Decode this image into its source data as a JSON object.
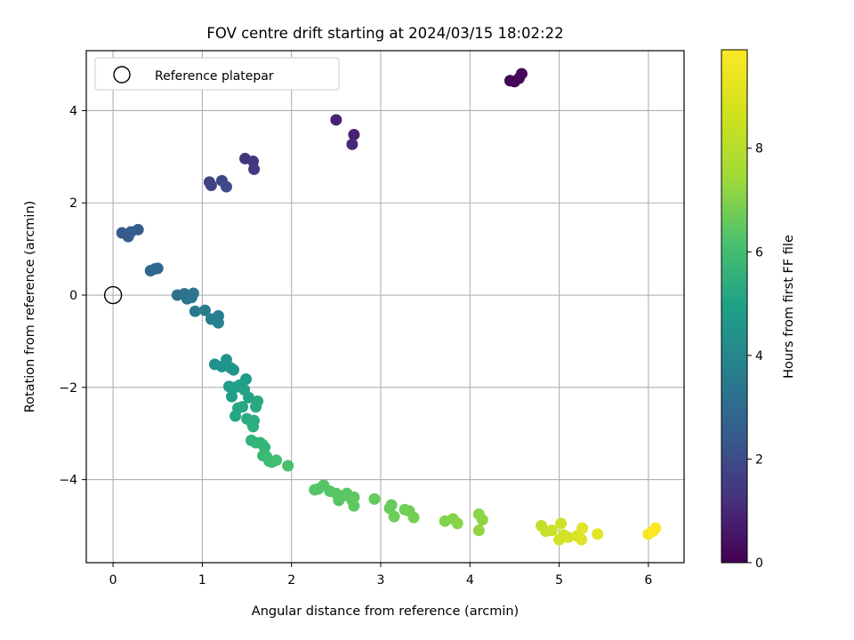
{
  "chart_data": {
    "type": "scatter",
    "title": "FOV centre drift starting at 2024/03/15 18:02:22",
    "xlabel": "Angular distance from reference (arcmin)",
    "ylabel": "Rotation from reference (arcmin)",
    "xlim": [
      -0.3,
      6.4
    ],
    "ylim": [
      -5.8,
      5.3
    ],
    "xticks": [
      0,
      1,
      2,
      3,
      4,
      5,
      6
    ],
    "xtick_labels": [
      "0",
      "1",
      "2",
      "3",
      "4",
      "5",
      "6"
    ],
    "yticks": [
      -4,
      -2,
      0,
      2,
      4
    ],
    "ytick_labels": [
      "−4",
      "−2",
      "0",
      "2",
      "4"
    ],
    "grid": true,
    "legend": {
      "placement": "top-left",
      "entries": [
        "Reference platepar"
      ]
    },
    "reference_point": {
      "name": "Reference platepar",
      "x": 0,
      "y": 0
    },
    "colorbar": {
      "label": "Hours from first FF file",
      "colormap": "viridis",
      "range": [
        0,
        9.9
      ],
      "ticks": [
        0,
        2,
        4,
        6,
        8
      ],
      "tick_labels": [
        "0",
        "2",
        "4",
        "6",
        "8"
      ]
    },
    "series": [
      {
        "points": [
          {
            "x": 4.45,
            "y": 4.65,
            "t": 0.1
          },
          {
            "x": 4.5,
            "y": 4.63,
            "t": 0.15
          },
          {
            "x": 4.55,
            "y": 4.7,
            "t": 0.2
          },
          {
            "x": 4.58,
            "y": 4.8,
            "t": 0.25
          },
          {
            "x": 2.5,
            "y": 3.8,
            "t": 0.9
          },
          {
            "x": 2.7,
            "y": 3.48,
            "t": 1.0
          },
          {
            "x": 2.68,
            "y": 3.27,
            "t": 1.1
          },
          {
            "x": 1.48,
            "y": 2.96,
            "t": 1.5
          },
          {
            "x": 1.57,
            "y": 2.9,
            "t": 1.6
          },
          {
            "x": 1.58,
            "y": 2.73,
            "t": 1.7
          },
          {
            "x": 1.08,
            "y": 2.45,
            "t": 1.9
          },
          {
            "x": 1.1,
            "y": 2.38,
            "t": 2.0
          },
          {
            "x": 1.22,
            "y": 2.48,
            "t": 2.1
          },
          {
            "x": 1.27,
            "y": 2.35,
            "t": 2.2
          },
          {
            "x": 0.1,
            "y": 1.35,
            "t": 2.8
          },
          {
            "x": 0.17,
            "y": 1.27,
            "t": 2.85
          },
          {
            "x": 0.2,
            "y": 1.37,
            "t": 2.9
          },
          {
            "x": 0.28,
            "y": 1.42,
            "t": 2.95
          },
          {
            "x": 0.42,
            "y": 0.53,
            "t": 3.3
          },
          {
            "x": 0.47,
            "y": 0.57,
            "t": 3.35
          },
          {
            "x": 0.5,
            "y": 0.58,
            "t": 3.4
          },
          {
            "x": 0.72,
            "y": 0.0,
            "t": 3.7
          },
          {
            "x": 0.8,
            "y": 0.03,
            "t": 3.75
          },
          {
            "x": 0.83,
            "y": -0.08,
            "t": 3.8
          },
          {
            "x": 0.9,
            "y": 0.04,
            "t": 3.85
          },
          {
            "x": 0.88,
            "y": -0.05,
            "t": 3.9
          },
          {
            "x": 0.92,
            "y": -0.35,
            "t": 4.0
          },
          {
            "x": 1.03,
            "y": -0.33,
            "t": 4.1
          },
          {
            "x": 1.1,
            "y": -0.52,
            "t": 4.2
          },
          {
            "x": 1.18,
            "y": -0.45,
            "t": 4.25
          },
          {
            "x": 1.18,
            "y": -0.6,
            "t": 4.3
          },
          {
            "x": 1.14,
            "y": -1.5,
            "t": 5.0
          },
          {
            "x": 1.22,
            "y": -1.55,
            "t": 5.05
          },
          {
            "x": 1.27,
            "y": -1.4,
            "t": 5.1
          },
          {
            "x": 1.32,
            "y": -1.58,
            "t": 5.15
          },
          {
            "x": 1.35,
            "y": -1.62,
            "t": 5.2
          },
          {
            "x": 1.49,
            "y": -1.82,
            "t": 5.4
          },
          {
            "x": 1.3,
            "y": -1.98,
            "t": 5.45
          },
          {
            "x": 1.37,
            "y": -2.0,
            "t": 5.5
          },
          {
            "x": 1.33,
            "y": -2.2,
            "t": 5.55
          },
          {
            "x": 1.42,
            "y": -1.95,
            "t": 5.6
          },
          {
            "x": 1.47,
            "y": -2.05,
            "t": 5.65
          },
          {
            "x": 1.52,
            "y": -2.22,
            "t": 5.7
          },
          {
            "x": 1.4,
            "y": -2.45,
            "t": 5.8
          },
          {
            "x": 1.37,
            "y": -2.62,
            "t": 5.85
          },
          {
            "x": 1.45,
            "y": -2.42,
            "t": 5.9
          },
          {
            "x": 1.62,
            "y": -2.3,
            "t": 5.95
          },
          {
            "x": 1.6,
            "y": -2.42,
            "t": 6.0
          },
          {
            "x": 1.5,
            "y": -2.68,
            "t": 6.1
          },
          {
            "x": 1.55,
            "y": -2.75,
            "t": 6.15
          },
          {
            "x": 1.58,
            "y": -2.72,
            "t": 6.2
          },
          {
            "x": 1.57,
            "y": -2.85,
            "t": 6.25
          },
          {
            "x": 1.55,
            "y": -3.15,
            "t": 6.4
          },
          {
            "x": 1.6,
            "y": -3.2,
            "t": 6.45
          },
          {
            "x": 1.65,
            "y": -3.2,
            "t": 6.5
          },
          {
            "x": 1.68,
            "y": -3.25,
            "t": 6.55
          },
          {
            "x": 1.7,
            "y": -3.3,
            "t": 6.6
          },
          {
            "x": 1.68,
            "y": -3.48,
            "t": 6.7
          },
          {
            "x": 1.72,
            "y": -3.5,
            "t": 6.75
          },
          {
            "x": 1.75,
            "y": -3.6,
            "t": 6.8
          },
          {
            "x": 1.78,
            "y": -3.62,
            "t": 6.85
          },
          {
            "x": 1.83,
            "y": -3.58,
            "t": 6.9
          },
          {
            "x": 1.96,
            "y": -3.7,
            "t": 7.0
          },
          {
            "x": 2.26,
            "y": -4.22,
            "t": 7.2
          },
          {
            "x": 2.3,
            "y": -4.2,
            "t": 7.22
          },
          {
            "x": 2.36,
            "y": -4.12,
            "t": 7.24
          },
          {
            "x": 2.43,
            "y": -4.25,
            "t": 7.26
          },
          {
            "x": 2.5,
            "y": -4.3,
            "t": 7.28
          },
          {
            "x": 2.53,
            "y": -4.45,
            "t": 7.3
          },
          {
            "x": 2.58,
            "y": -4.35,
            "t": 7.32
          },
          {
            "x": 2.62,
            "y": -4.3,
            "t": 7.34
          },
          {
            "x": 2.68,
            "y": -4.45,
            "t": 7.36
          },
          {
            "x": 2.7,
            "y": -4.38,
            "t": 7.38
          },
          {
            "x": 2.7,
            "y": -4.57,
            "t": 7.4
          },
          {
            "x": 2.93,
            "y": -4.42,
            "t": 7.5
          },
          {
            "x": 3.12,
            "y": -4.55,
            "t": 7.55
          },
          {
            "x": 3.1,
            "y": -4.62,
            "t": 7.6
          },
          {
            "x": 3.15,
            "y": -4.8,
            "t": 7.65
          },
          {
            "x": 3.27,
            "y": -4.65,
            "t": 7.7
          },
          {
            "x": 3.32,
            "y": -4.68,
            "t": 7.75
          },
          {
            "x": 3.37,
            "y": -4.82,
            "t": 7.8
          },
          {
            "x": 3.72,
            "y": -4.9,
            "t": 8.0
          },
          {
            "x": 3.81,
            "y": -4.85,
            "t": 8.05
          },
          {
            "x": 3.86,
            "y": -4.95,
            "t": 8.1
          },
          {
            "x": 4.1,
            "y": -4.75,
            "t": 8.15
          },
          {
            "x": 4.14,
            "y": -4.87,
            "t": 8.2
          },
          {
            "x": 4.1,
            "y": -5.1,
            "t": 8.25
          },
          {
            "x": 4.8,
            "y": -5.0,
            "t": 9.0
          },
          {
            "x": 4.85,
            "y": -5.12,
            "t": 9.05
          },
          {
            "x": 4.92,
            "y": -5.1,
            "t": 9.1
          },
          {
            "x": 5.02,
            "y": -4.95,
            "t": 9.15
          },
          {
            "x": 5.0,
            "y": -5.3,
            "t": 9.2
          },
          {
            "x": 5.05,
            "y": -5.2,
            "t": 9.25
          },
          {
            "x": 5.1,
            "y": -5.25,
            "t": 9.3
          },
          {
            "x": 5.2,
            "y": -5.22,
            "t": 9.35
          },
          {
            "x": 5.25,
            "y": -5.3,
            "t": 9.4
          },
          {
            "x": 5.26,
            "y": -5.05,
            "t": 9.45
          },
          {
            "x": 5.43,
            "y": -5.18,
            "t": 9.5
          },
          {
            "x": 6.0,
            "y": -5.18,
            "t": 9.8
          },
          {
            "x": 6.05,
            "y": -5.12,
            "t": 9.85
          },
          {
            "x": 6.08,
            "y": -5.05,
            "t": 9.9
          }
        ]
      }
    ]
  }
}
